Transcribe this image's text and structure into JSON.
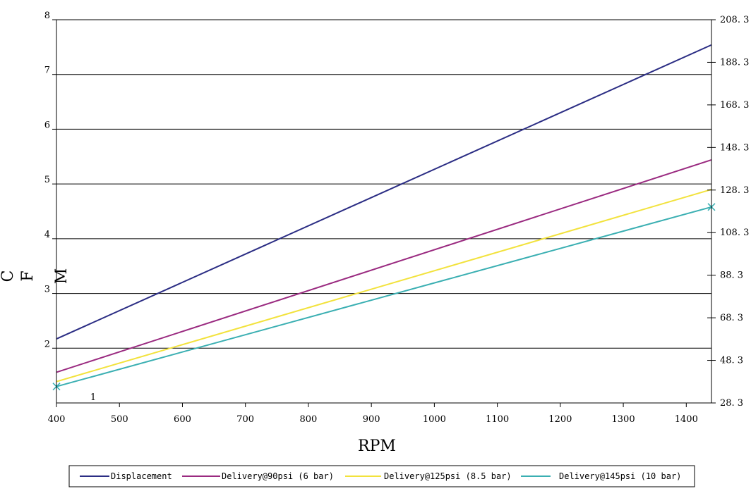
{
  "chart_data": {
    "type": "line",
    "xlabel": "RPM",
    "ylabel_chars": [
      "C",
      "F",
      "M"
    ],
    "annotation": "1",
    "x_ticks": [
      "400",
      "500",
      "600",
      "700",
      "800",
      "900",
      "1000",
      "1100",
      "1200",
      "1300",
      "1400"
    ],
    "xlim": [
      400,
      1440
    ],
    "y_left_ticks": [
      "2",
      "3",
      "4",
      "5",
      "6",
      "7",
      "8"
    ],
    "ylim_left": [
      1,
      8
    ],
    "y_right_ticks": [
      "28.3",
      "48.3",
      "68.3",
      "88.3",
      "108.3",
      "128.3",
      "148.3",
      "168.3",
      "188.3",
      "208.3"
    ],
    "ylim_right": [
      28.3,
      208.3
    ],
    "grid": "horizontal",
    "legend_position": "bottom",
    "series": [
      {
        "name": "Displacement",
        "color": "#2b2d84",
        "x": [
          400,
          1440
        ],
        "y": [
          2.17,
          7.54
        ]
      },
      {
        "name": "Delivery@90psi (6 bar)",
        "color": "#9a2a80",
        "x": [
          400,
          1440
        ],
        "y": [
          1.56,
          5.44
        ]
      },
      {
        "name": "Delivery@125psi (8.5 bar)",
        "color": "#f2e23c",
        "x": [
          400,
          1440
        ],
        "y": [
          1.39,
          4.9
        ]
      },
      {
        "name": "Delivery@145psi (10 bar)",
        "color": "#3aafb2",
        "x": [
          400,
          1440
        ],
        "y": [
          1.3,
          4.58
        ]
      }
    ]
  }
}
